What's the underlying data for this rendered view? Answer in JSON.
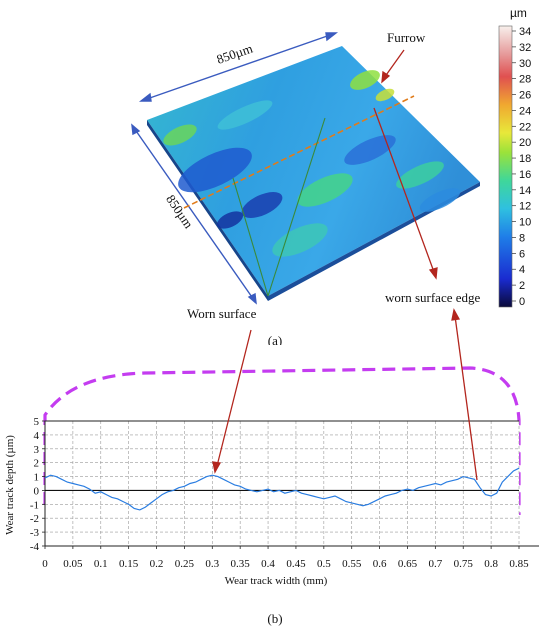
{
  "figure_a": {
    "caption": "(a)",
    "unit": "µm",
    "scale_ticks": [
      "34",
      "32",
      "30",
      "28",
      "26",
      "24",
      "22",
      "20",
      "18",
      "16",
      "14",
      "12",
      "10",
      "8",
      "6",
      "4",
      "2",
      "0"
    ],
    "dim_top": "850µm",
    "dim_left": "850µm",
    "callout_furrow": "Furrow",
    "callout_worn_surface": "Worn surface",
    "callout_edge": "worn surface edge",
    "colors": {
      "surface_base": "#2fa3e0",
      "surface_light": "#35c7d6",
      "surface_dark": "#1a55c8",
      "surface_green": "#4fd98a",
      "dim_arrow": "#3a5bbf",
      "cut_line": "#e07b1a",
      "callout_arrow": "#b3261e",
      "leader": "#3a8a3a"
    }
  },
  "figure_b": {
    "caption": "(b)",
    "xlabel": "Wear track width (mm)",
    "ylabel": "Wear track depth (µm)",
    "x_ticks": [
      "0",
      "0.05",
      "0.1",
      "0.15",
      "0.2",
      "0.25",
      "0.3",
      "0.35",
      "0.4",
      "0.45",
      "0.5",
      "0.55",
      "0.6",
      "0.65",
      "0.7",
      "0.75",
      "0.8",
      "0.85"
    ],
    "y_ticks": [
      "5",
      "4",
      "3",
      "2",
      "1",
      "0",
      "-1",
      "-2",
      "-3",
      "-4"
    ]
  },
  "chart_data": {
    "type": "line",
    "title": "",
    "xlabel": "Wear track width (mm)",
    "ylabel": "Wear track depth (µm)",
    "xlim": [
      0,
      0.85
    ],
    "ylim": [
      -4,
      5
    ],
    "grid": true,
    "series": [
      {
        "color": "#2a7de1",
        "x": [
          0,
          0.01,
          0.02,
          0.03,
          0.04,
          0.05,
          0.06,
          0.07,
          0.08,
          0.09,
          0.1,
          0.11,
          0.12,
          0.13,
          0.14,
          0.15,
          0.16,
          0.17,
          0.18,
          0.19,
          0.2,
          0.21,
          0.22,
          0.23,
          0.24,
          0.25,
          0.26,
          0.27,
          0.28,
          0.29,
          0.3,
          0.31,
          0.32,
          0.33,
          0.34,
          0.35,
          0.36,
          0.37,
          0.38,
          0.39,
          0.4,
          0.41,
          0.42,
          0.43,
          0.44,
          0.45,
          0.46,
          0.47,
          0.48,
          0.49,
          0.5,
          0.51,
          0.52,
          0.53,
          0.54,
          0.55,
          0.56,
          0.57,
          0.58,
          0.59,
          0.6,
          0.61,
          0.62,
          0.63,
          0.64,
          0.65,
          0.66,
          0.67,
          0.68,
          0.69,
          0.7,
          0.71,
          0.72,
          0.73,
          0.74,
          0.75,
          0.76,
          0.77,
          0.78,
          0.79,
          0.8,
          0.81,
          0.82,
          0.83,
          0.84,
          0.85
        ],
        "y": [
          0.9,
          1.1,
          1.0,
          0.8,
          0.6,
          0.5,
          0.4,
          0.3,
          0.1,
          -0.2,
          -0.1,
          -0.3,
          -0.5,
          -0.6,
          -0.8,
          -1.0,
          -1.3,
          -1.4,
          -1.2,
          -0.9,
          -0.6,
          -0.3,
          -0.1,
          0.0,
          0.2,
          0.3,
          0.5,
          0.6,
          0.8,
          1.0,
          1.1,
          1.0,
          0.8,
          0.6,
          0.4,
          0.3,
          0.1,
          0.0,
          -0.1,
          0.0,
          0.1,
          -0.1,
          0.0,
          -0.2,
          -0.1,
          0.0,
          -0.2,
          -0.3,
          -0.4,
          -0.5,
          -0.6,
          -0.5,
          -0.4,
          -0.6,
          -0.8,
          -0.9,
          -1.0,
          -1.1,
          -1.0,
          -0.8,
          -0.6,
          -0.4,
          -0.3,
          -0.2,
          0.0,
          0.1,
          0.0,
          0.2,
          0.3,
          0.4,
          0.5,
          0.4,
          0.6,
          0.7,
          0.8,
          1.0,
          0.9,
          0.8,
          0.2,
          -0.3,
          -0.4,
          -0.2,
          0.6,
          1.0,
          1.4,
          1.6
        ]
      }
    ],
    "boundary_dashed": true
  }
}
